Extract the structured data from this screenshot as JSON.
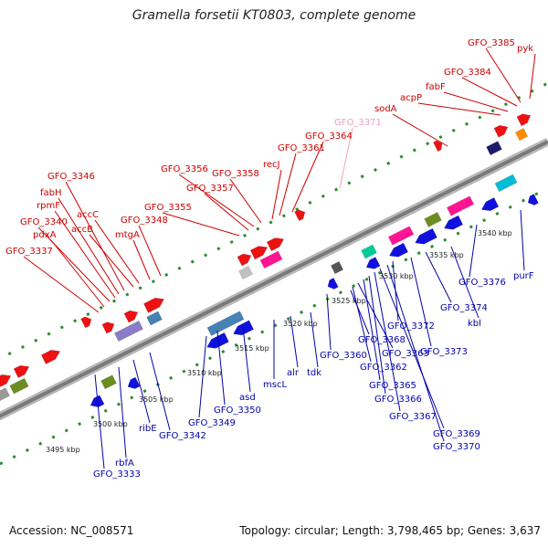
{
  "title": "Gramella forsetii KT0803, complete genome",
  "footer": {
    "accession": "Accession: NC_008571",
    "summary": "Topology: circular; Length: 3,798,465 bp; Genes: 3,637"
  },
  "colors": {
    "top_label": "#cc0000",
    "top_label_faded": "#f0a0b8",
    "bottom_label": "#0000aa",
    "axis": "#8a8a8a",
    "tick": "#2e8b2e",
    "forward_gene": "#ee1111",
    "reverse_gene": "#1111dd"
  },
  "scale_ticks": [
    {
      "label": "3495 kbp"
    },
    {
      "label": "3500 kbp"
    },
    {
      "label": "3505 kbp"
    },
    {
      "label": "3510 kbp"
    },
    {
      "label": "3515 kbp"
    },
    {
      "label": "3520 kbp"
    },
    {
      "label": "3525 kbp"
    },
    {
      "label": "3530 kbp"
    },
    {
      "label": "3535 kbp"
    },
    {
      "label": "3540 kbp"
    }
  ],
  "top_labels": [
    {
      "text": "GFO_3337"
    },
    {
      "text": "pdxA"
    },
    {
      "text": "GFO_3340"
    },
    {
      "text": "rpmF"
    },
    {
      "text": "fabH"
    },
    {
      "text": "GFO_3346"
    },
    {
      "text": "accB"
    },
    {
      "text": "accC"
    },
    {
      "text": "mtgA"
    },
    {
      "text": "GFO_3348"
    },
    {
      "text": "GFO_3355"
    },
    {
      "text": "GFO_3357"
    },
    {
      "text": "GFO_3356"
    },
    {
      "text": "GFO_3358"
    },
    {
      "text": "recJ"
    },
    {
      "text": "GFO_3361"
    },
    {
      "text": "GFO_3364"
    },
    {
      "text": "GFO_3371",
      "faded": true
    },
    {
      "text": "sodA"
    },
    {
      "text": "acpP"
    },
    {
      "text": "fabF"
    },
    {
      "text": "GFO_3384"
    },
    {
      "text": "GFO_3385"
    },
    {
      "text": "pyk"
    }
  ],
  "bottom_labels": [
    {
      "text": "GFO_3333"
    },
    {
      "text": "rbfA"
    },
    {
      "text": "ribE"
    },
    {
      "text": "GFO_3342"
    },
    {
      "text": "GFO_3349"
    },
    {
      "text": "GFO_3350"
    },
    {
      "text": "asd"
    },
    {
      "text": "mscL"
    },
    {
      "text": "alr"
    },
    {
      "text": "tdk"
    },
    {
      "text": "GFO_3360"
    },
    {
      "text": "GFO_3368"
    },
    {
      "text": "GFO_3362"
    },
    {
      "text": "GFO_3363"
    },
    {
      "text": "GFO_3365"
    },
    {
      "text": "GFO_3366"
    },
    {
      "text": "GFO_3367"
    },
    {
      "text": "GFO_3369"
    },
    {
      "text": "GFO_3370"
    },
    {
      "text": "GFO_3372"
    },
    {
      "text": "GFO_3373"
    },
    {
      "text": "GFO_3374"
    },
    {
      "text": "kbl"
    },
    {
      "text": "GFO_3376"
    },
    {
      "text": "purF"
    }
  ]
}
